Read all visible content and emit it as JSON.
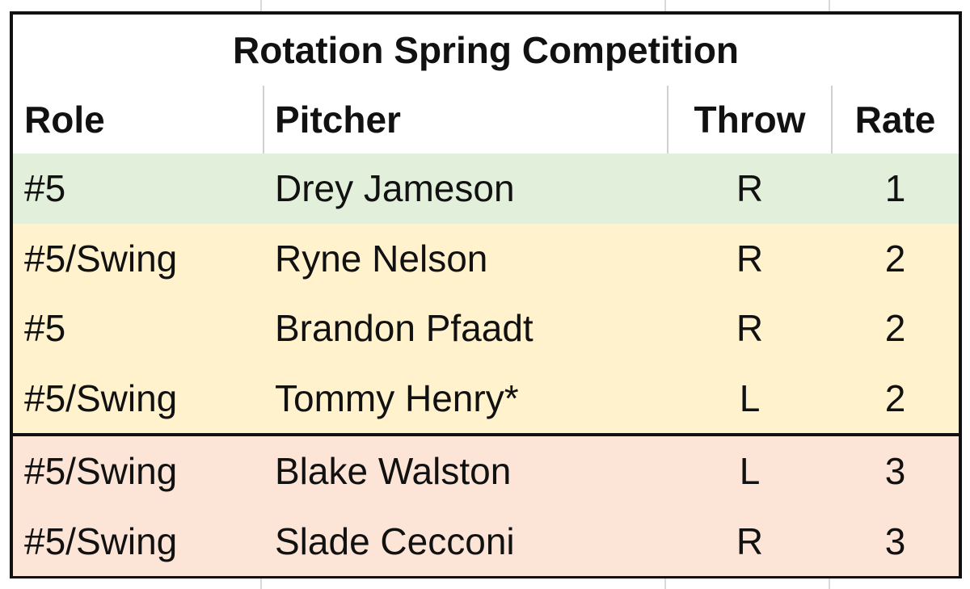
{
  "table": {
    "title": "Rotation Spring Competition",
    "header": [
      "Role",
      "Pitcher",
      "Throw",
      "Rate"
    ],
    "rows": [
      [
        "#5",
        "Drey Jameson",
        "R",
        "1"
      ],
      [
        "#5/Swing",
        "Ryne Nelson",
        "R",
        "2"
      ],
      [
        "#5",
        "Brandon Pfaadt",
        "R",
        "2"
      ],
      [
        "#5/Swing",
        "Tommy Henry*",
        "L",
        "2"
      ],
      [
        "#5/Swing",
        "Blake Walston",
        "L",
        "3"
      ],
      [
        "#5/Swing",
        "Slade Cecconi",
        "R",
        "3"
      ]
    ],
    "row_colors": [
      "#e2efda",
      "#fff2cc",
      "#fff2cc",
      "#fff2cc",
      "#fce4d6",
      "#fce4d6"
    ]
  }
}
